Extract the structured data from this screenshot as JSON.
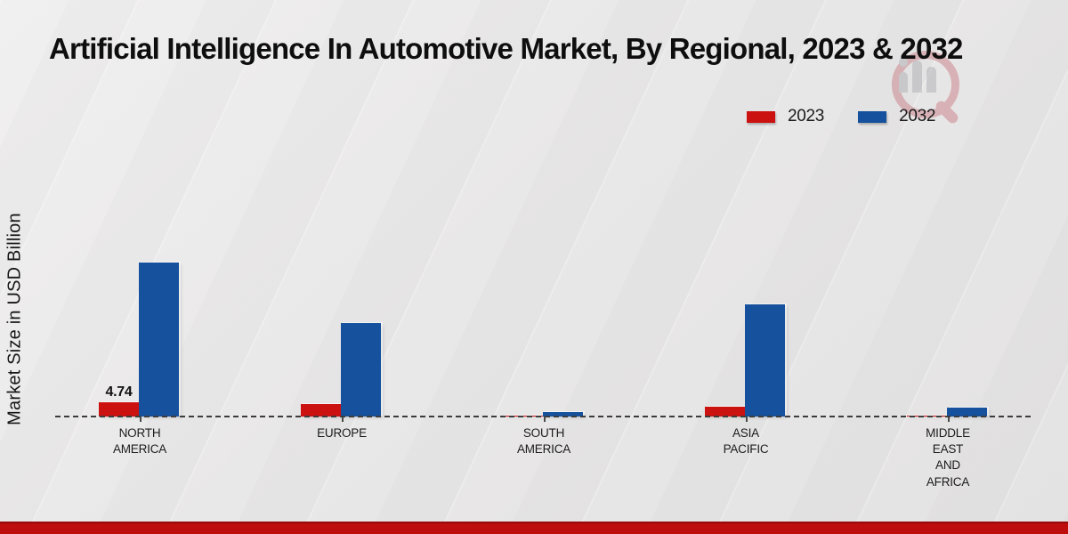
{
  "title": "Artificial Intelligence In Automotive Market, By Regional, 2023 & 2032",
  "chart_data": {
    "type": "bar",
    "title": "Artificial Intelligence In Automotive Market, By Regional, 2023 & 2032",
    "xlabel": "",
    "ylabel": "Market Size in USD Billion",
    "ylim": [
      0,
      55
    ],
    "grid": false,
    "legend_position": "top-right",
    "baseline_style": "dashed",
    "categories": [
      "NORTH AMERICA",
      "EUROPE",
      "SOUTH AMERICA",
      "ASIA PACIFIC",
      "MIDDLE EAST AND AFRICA"
    ],
    "category_lines": [
      [
        "NORTH",
        "AMERICA"
      ],
      [
        "EUROPE"
      ],
      [
        "SOUTH",
        "AMERICA"
      ],
      [
        "ASIA",
        "PACIFIC"
      ],
      [
        "MIDDLE",
        "EAST",
        "AND",
        "AFRICA"
      ]
    ],
    "series": [
      {
        "name": "2023",
        "color": "#cc1111",
        "values": [
          4.74,
          4.1,
          0.3,
          3.2,
          0.4
        ]
      },
      {
        "name": "2032",
        "color": "#15519c",
        "values": [
          51.3,
          31.0,
          1.6,
          37.4,
          3.1
        ]
      }
    ],
    "data_labels": [
      {
        "series": "2023",
        "category_index": 0,
        "text": "4.74"
      }
    ]
  },
  "colors": {
    "series_2023": "#cc1111",
    "series_2032": "#15519c",
    "footer_bar": "#bd0d0d",
    "background": "#e9e8e8"
  }
}
